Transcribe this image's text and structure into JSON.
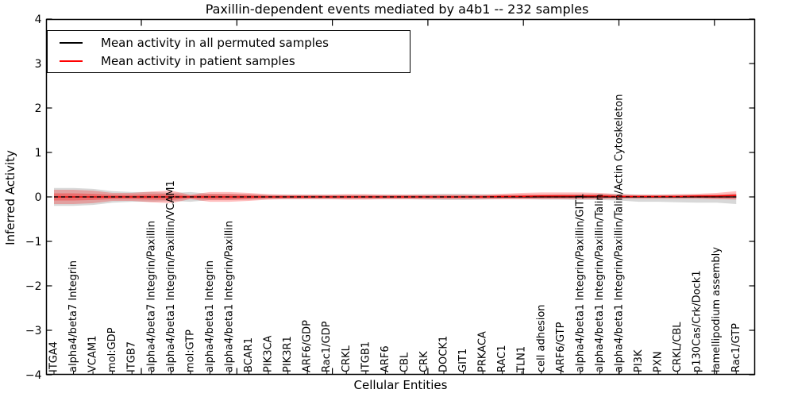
{
  "chart_data": {
    "type": "line",
    "title": "Paxillin-dependent events mediated by a4b1 -- 232 samples",
    "xlabel": "Cellular Entities",
    "ylabel": "Inferred Activity",
    "ylim": [
      -4,
      4
    ],
    "grid": false,
    "legend_position": "upper left",
    "ytick_values": [
      4,
      3,
      2,
      1,
      0,
      -1,
      -2,
      -3,
      -4
    ],
    "ytick_labels": [
      "4",
      "3",
      "2",
      "1",
      "0",
      "−1",
      "−2",
      "−3",
      "−4"
    ],
    "categories": [
      "ITGA4",
      "alpha4/beta7 Integrin",
      "VCAM1",
      "mol:GDP",
      "ITGB7",
      "alpha4/beta7 Integrin/Paxillin",
      "alpha4/beta1 Integrin/Paxillin/VCAM1",
      "mol:GTP",
      "alpha4/beta1 Integrin",
      "alpha4/beta1 Integrin/Paxillin",
      "BCAR1",
      "PIK3CA",
      "PIK3R1",
      "ARF6/GDP",
      "Rac1/GDP",
      "CRKL",
      "ITGB1",
      "ARF6",
      "CBL",
      "CRK",
      "DOCK1",
      "GIT1",
      "PRKACA",
      "RAC1",
      "TLN1",
      "cell adhesion",
      "ARF6/GTP",
      "alpha4/beta1 Integrin/Paxillin/GIT1",
      "alpha4/beta1 Integrin/Paxillin/Talin",
      "alpha4/beta1 Integrin/Paxillin/Talin/Actin Cytoskeleton",
      "PI3K",
      "PXN",
      "CRKL/CBL",
      "p130Cas/Crk/Dock1",
      "lamellipodium assembly",
      "Rac1/GTP"
    ],
    "series": [
      {
        "name": "Mean activity in all permuted samples",
        "color": "#000000",
        "style": "solid",
        "values": [
          0,
          0,
          0,
          0,
          0,
          0,
          0,
          0,
          0,
          0,
          0,
          0,
          0,
          0,
          0,
          0,
          0,
          0,
          0,
          0,
          0,
          0,
          0,
          0,
          0,
          0,
          0,
          0,
          0,
          0,
          0,
          0,
          0,
          0,
          0,
          0
        ]
      },
      {
        "name": "Mean activity in patient samples",
        "color": "#ff0000",
        "style": "solid",
        "values": [
          0,
          0,
          0,
          0,
          0,
          0,
          0,
          0,
          0,
          0,
          0,
          0,
          0,
          0,
          0,
          0,
          0,
          0,
          0,
          0,
          0,
          0,
          0,
          0.01,
          0.01,
          0.02,
          0.02,
          0.02,
          0.02,
          0.01,
          0.01,
          0.01,
          0.01,
          0.02,
          0.02,
          0.03
        ]
      }
    ],
    "reference_line": {
      "y": 0,
      "style": "dashed",
      "color": "#000000"
    },
    "bands": [
      {
        "name": "permuted-spread",
        "color": "#999999",
        "opacity": 0.38,
        "upper": [
          0.2,
          0.2,
          0.18,
          0.13,
          0.11,
          0.11,
          0.09,
          0.11,
          0.07,
          0.07,
          0.06,
          0.05,
          0.05,
          0.05,
          0.05,
          0.05,
          0.05,
          0.05,
          0.05,
          0.06,
          0.07,
          0.07,
          0.06,
          0.05,
          0.05,
          0.05,
          0.06,
          0.06,
          0.07,
          0.07,
          0.05,
          0.05,
          0.05,
          0.05,
          0.05,
          0.07
        ],
        "lower": [
          -0.2,
          -0.2,
          -0.18,
          -0.13,
          -0.11,
          -0.11,
          -0.09,
          -0.11,
          -0.07,
          -0.07,
          -0.06,
          -0.05,
          -0.05,
          -0.05,
          -0.05,
          -0.05,
          -0.05,
          -0.05,
          -0.05,
          -0.06,
          -0.07,
          -0.07,
          -0.06,
          -0.05,
          -0.05,
          -0.06,
          -0.06,
          -0.07,
          -0.07,
          -0.08,
          -0.11,
          -0.11,
          -0.12,
          -0.13,
          -0.13,
          -0.16
        ]
      },
      {
        "name": "patient-spread-outer",
        "color": "#ff0000",
        "opacity": 0.26,
        "upper": [
          0.16,
          0.16,
          0.14,
          0.09,
          0.09,
          0.12,
          0.14,
          0.05,
          0.11,
          0.11,
          0.09,
          0.06,
          0.05,
          0.05,
          0.05,
          0.06,
          0.06,
          0.05,
          0.05,
          0.05,
          0.05,
          0.05,
          0.05,
          0.07,
          0.09,
          0.1,
          0.1,
          0.1,
          0.09,
          0.06,
          0.05,
          0.05,
          0.06,
          0.07,
          0.09,
          0.13
        ],
        "lower": [
          -0.16,
          -0.16,
          -0.14,
          -0.09,
          -0.09,
          -0.12,
          -0.14,
          -0.05,
          -0.11,
          -0.11,
          -0.09,
          -0.06,
          -0.05,
          -0.05,
          -0.05,
          -0.06,
          -0.06,
          -0.05,
          -0.05,
          -0.05,
          -0.05,
          -0.05,
          -0.05,
          -0.05,
          -0.05,
          -0.05,
          -0.05,
          -0.05,
          -0.05,
          -0.04,
          -0.04,
          -0.04,
          -0.04,
          -0.04,
          -0.05,
          -0.06
        ]
      },
      {
        "name": "patient-spread-inner",
        "color": "#ff0000",
        "opacity": 0.3,
        "upper": [
          0.08,
          0.08,
          0.07,
          0.05,
          0.05,
          0.06,
          0.07,
          0.03,
          0.06,
          0.06,
          0.05,
          0.03,
          0.03,
          0.03,
          0.03,
          0.03,
          0.03,
          0.03,
          0.03,
          0.03,
          0.03,
          0.03,
          0.03,
          0.04,
          0.05,
          0.05,
          0.05,
          0.05,
          0.05,
          0.03,
          0.03,
          0.03,
          0.03,
          0.04,
          0.05,
          0.07
        ],
        "lower": [
          -0.08,
          -0.08,
          -0.07,
          -0.05,
          -0.05,
          -0.06,
          -0.07,
          -0.03,
          -0.06,
          -0.06,
          -0.05,
          -0.03,
          -0.03,
          -0.03,
          -0.03,
          -0.03,
          -0.03,
          -0.03,
          -0.03,
          -0.03,
          -0.03,
          -0.03,
          -0.03,
          -0.03,
          -0.03,
          -0.03,
          -0.03,
          -0.03,
          -0.03,
          -0.02,
          -0.02,
          -0.02,
          -0.02,
          -0.02,
          -0.03,
          -0.03
        ]
      }
    ],
    "legend": {
      "items": [
        {
          "label": "Mean activity in all permuted samples",
          "color": "#000000"
        },
        {
          "label": "Mean activity in patient samples",
          "color": "#ff0000"
        }
      ]
    }
  }
}
